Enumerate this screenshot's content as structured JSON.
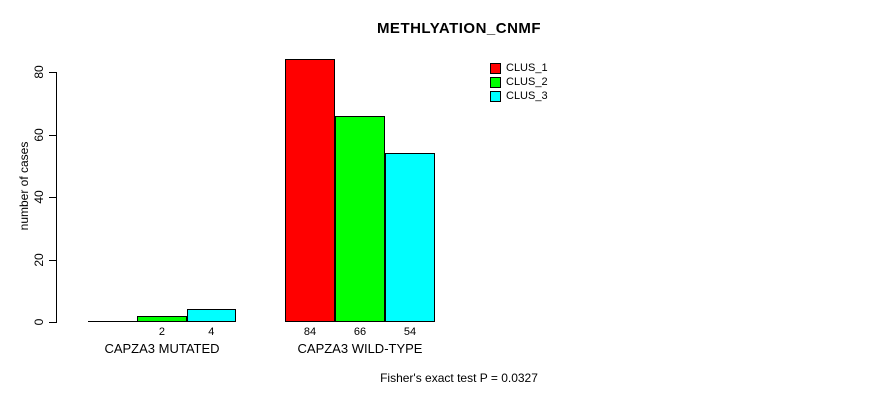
{
  "chart_data": {
    "type": "bar",
    "title": "METHLYATION_CNMF",
    "xlabel": "",
    "ylabel": "number of cases",
    "ylim": [
      0,
      80
    ],
    "yticks": [
      0,
      20,
      40,
      60,
      80
    ],
    "grid": false,
    "legend_position": "top-right",
    "categories": [
      "CAPZA3 MUTATED",
      "CAPZA3 WILD-TYPE"
    ],
    "series": [
      {
        "name": "CLUS_1",
        "color": "#ff0000",
        "values": [
          0,
          84
        ]
      },
      {
        "name": "CLUS_2",
        "color": "#00ff00",
        "values": [
          2,
          66
        ]
      },
      {
        "name": "CLUS_3",
        "color": "#00ffff",
        "values": [
          4,
          54
        ]
      }
    ],
    "bar_value_labels_shown": true,
    "annotation": "Fisher's exact test P = 0.0327"
  }
}
